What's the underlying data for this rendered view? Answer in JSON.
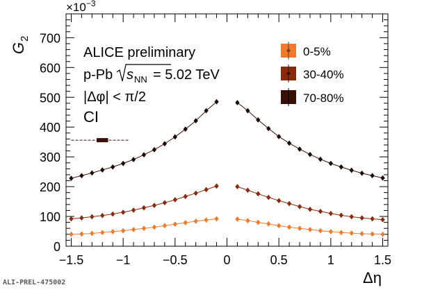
{
  "chart_data": {
    "type": "scatter",
    "xlabel": "Δη",
    "ylabel": "G",
    "ylabel_sub": "2",
    "y_scale_label": "×10",
    "y_scale_exponent": "−3",
    "xlim": [
      -1.55,
      1.55
    ],
    "ylim": [
      0,
      780
    ],
    "x_ticks": [
      -1.5,
      -1,
      -0.5,
      0,
      0.5,
      1,
      1.5
    ],
    "x_tick_labels": [
      "−1.5",
      "−1",
      "−0.5",
      "0",
      "0.5",
      "1",
      "1.5"
    ],
    "y_ticks": [
      0,
      100,
      200,
      300,
      400,
      500,
      600,
      700
    ],
    "y_tick_labels": [
      "0",
      "100",
      "200",
      "300",
      "400",
      "500",
      "600",
      "700"
    ],
    "grid": false,
    "legend_position": "top-right",
    "annotations": {
      "line1": "ALICE preliminary",
      "line2_prefix": "p-Pb",
      "line2_energy": "= 5.02 TeV",
      "line2_s": "s",
      "line2_sub": "NN",
      "line3": "|Δφ| < π/2",
      "line4": "CI"
    },
    "reference_label": "ALI-PREL-475002",
    "syst_band": {
      "x": [
        -1.5,
        -0.95
      ],
      "center_x": -1.2,
      "y": 356,
      "box_half_width": 0.055
    },
    "x": [
      -1.5,
      -1.4,
      -1.3,
      -1.2,
      -1.1,
      -1.0,
      -0.9,
      -0.8,
      -0.7,
      -0.6,
      -0.5,
      -0.4,
      -0.3,
      -0.2,
      -0.1,
      0.1,
      0.2,
      0.3,
      0.4,
      0.5,
      0.6,
      0.7,
      0.8,
      0.9,
      1.0,
      1.1,
      1.2,
      1.3,
      1.4,
      1.5
    ],
    "series": [
      {
        "name": "0-5%",
        "color": "#f07a2c",
        "values": [
          40,
          41,
          43,
          46,
          49,
          52,
          56,
          60,
          64,
          69,
          74,
          79,
          84,
          88,
          92,
          91,
          86,
          80,
          75,
          69,
          64,
          60,
          56,
          52,
          49,
          46,
          44,
          42,
          41,
          40
        ]
      },
      {
        "name": "30-40%",
        "color": "#8a2a0d",
        "values": [
          92,
          95,
          99,
          103,
          108,
          114,
          121,
          129,
          137,
          146,
          156,
          167,
          178,
          190,
          202,
          200,
          188,
          176,
          164,
          153,
          143,
          133,
          124,
          117,
          110,
          104,
          99,
          95,
          92,
          89
        ]
      },
      {
        "name": "70-80%",
        "color": "#3a1006",
        "values": [
          228,
          237,
          246,
          256,
          266,
          278,
          291,
          307,
          324,
          344,
          367,
          393,
          421,
          455,
          485,
          482,
          455,
          424,
          395,
          368,
          346,
          326,
          308,
          292,
          278,
          266,
          255,
          245,
          237,
          229
        ]
      }
    ]
  }
}
